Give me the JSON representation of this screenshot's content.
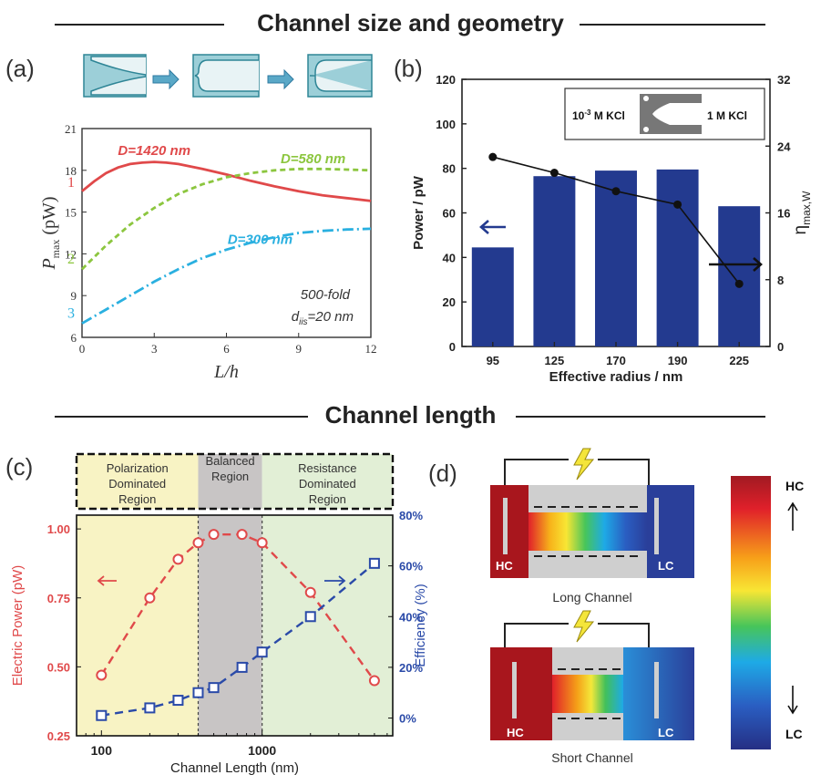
{
  "section_top": "Channel size and geometry",
  "section_bottom": "Channel length",
  "panels": {
    "a": "(a)",
    "b": "(b)",
    "c": "(c)",
    "d": "(d)"
  },
  "chart_data": [
    {
      "id": "a",
      "type": "line",
      "xlabel": "L/h",
      "ylabel_main": "P",
      "ylabel_sub": "max",
      "ylabel_unit": "(pW)",
      "xlim": [
        0,
        12
      ],
      "ylim": [
        6,
        21
      ],
      "xticks": [
        "0",
        "3",
        "6",
        "9",
        "12"
      ],
      "yticks": [
        "6",
        "9",
        "12",
        "15",
        "18",
        "21"
      ],
      "series": [
        {
          "name": "D=1420 nm",
          "tag": "1",
          "color": "#e0494a",
          "dash": "solid",
          "x": [
            0,
            0.5,
            1,
            1.5,
            2,
            2.5,
            3,
            3.5,
            4,
            5,
            6,
            7,
            8,
            9,
            10,
            11,
            12
          ],
          "y": [
            16.5,
            17.2,
            17.8,
            18.2,
            18.45,
            18.55,
            18.6,
            18.55,
            18.45,
            18.1,
            17.7,
            17.25,
            16.85,
            16.5,
            16.2,
            16.0,
            15.8
          ]
        },
        {
          "name": "D=580 nm",
          "tag": "2",
          "color": "#8cc63f",
          "dash": "6,4",
          "x": [
            0,
            1,
            2,
            3,
            4,
            5,
            6,
            7,
            8,
            9,
            10,
            11,
            12
          ],
          "y": [
            10.9,
            12.6,
            14.1,
            15.3,
            16.3,
            17.0,
            17.5,
            17.8,
            18.0,
            18.1,
            18.1,
            18.05,
            18.0
          ]
        },
        {
          "name": "D=300 nm",
          "tag": "3",
          "color": "#2ab0e0",
          "dash": "12,4,2,4",
          "x": [
            0,
            1,
            2,
            3,
            4,
            5,
            6,
            7,
            8,
            9,
            10,
            11,
            12
          ],
          "y": [
            7.0,
            8.0,
            9.0,
            10.0,
            10.9,
            11.7,
            12.3,
            12.8,
            13.2,
            13.5,
            13.65,
            13.75,
            13.8
          ]
        }
      ],
      "annotation": [
        "500-fold",
        "d",
        "iis",
        "=20 nm"
      ]
    },
    {
      "id": "b",
      "type": "bar",
      "categories": [
        "95",
        "125",
        "170",
        "190",
        "225"
      ],
      "values": [
        44.5,
        76.5,
        79,
        79.5,
        63
      ],
      "line_values": [
        22.7,
        20.8,
        18.6,
        17.0,
        7.5
      ],
      "xlabel": "Effective radius / nm",
      "ylabel": "Power / pW",
      "y2label_main": "η",
      "y2label_sub": "max,W",
      "ylim": [
        0,
        120
      ],
      "y2lim": [
        0,
        32
      ],
      "yticks": [
        "0",
        "20",
        "40",
        "60",
        "80",
        "100",
        "120"
      ],
      "y2ticks": [
        "0",
        "8",
        "16",
        "24",
        "32"
      ],
      "bar_color": "#233a8f",
      "inset_left": "10",
      "inset_left_sup": "-3",
      "inset_left_rest": " M KCl",
      "inset_right": "1 M KCl"
    },
    {
      "id": "c",
      "type": "line",
      "xlabel": "Channel Length (nm)",
      "ylabel": "Electric Power (pW)",
      "y2label": "Efficiency (%)",
      "xscale": "log",
      "xlim": [
        70,
        6500
      ],
      "ylim": [
        0.25,
        1.05
      ],
      "y2lim": [
        -7,
        80
      ],
      "xticks": [
        "100",
        "1000"
      ],
      "yticks": [
        "0.25",
        "0.50",
        "0.75",
        "1.00"
      ],
      "y2ticks": [
        "0%",
        "20%",
        "40%",
        "60%",
        "80%"
      ],
      "series": [
        {
          "axis": "left",
          "color": "#e0494a",
          "marker": "circle",
          "x": [
            100,
            200,
            300,
            400,
            500,
            750,
            1000,
            2000,
            5000
          ],
          "y": [
            0.47,
            0.75,
            0.89,
            0.95,
            0.98,
            0.98,
            0.95,
            0.77,
            0.45
          ]
        },
        {
          "axis": "right",
          "color": "#2a4aa8",
          "marker": "square",
          "x": [
            100,
            200,
            300,
            400,
            500,
            750,
            1000,
            2000,
            5000
          ],
          "y": [
            1,
            4,
            7,
            10,
            12,
            20,
            26,
            40,
            61
          ]
        }
      ],
      "regions": [
        {
          "label": [
            "Polarization",
            "Dominated",
            "Region"
          ],
          "color": "#f8f3c4",
          "from": 70,
          "to": 400
        },
        {
          "label": [
            "Balanced",
            "Region"
          ],
          "color": "#c8c5c5",
          "from": 400,
          "to": 1000
        },
        {
          "label": [
            "Resistance",
            "Dominated",
            "Region"
          ],
          "color": "#e2efd6",
          "from": 1000,
          "to": 6500
        }
      ]
    }
  ],
  "schematic": {
    "long_caption": "Long Channel",
    "short_caption": "Short Channel",
    "hc": "HC",
    "lc": "LC",
    "scale_top": "HC",
    "scale_bottom": "LC"
  }
}
